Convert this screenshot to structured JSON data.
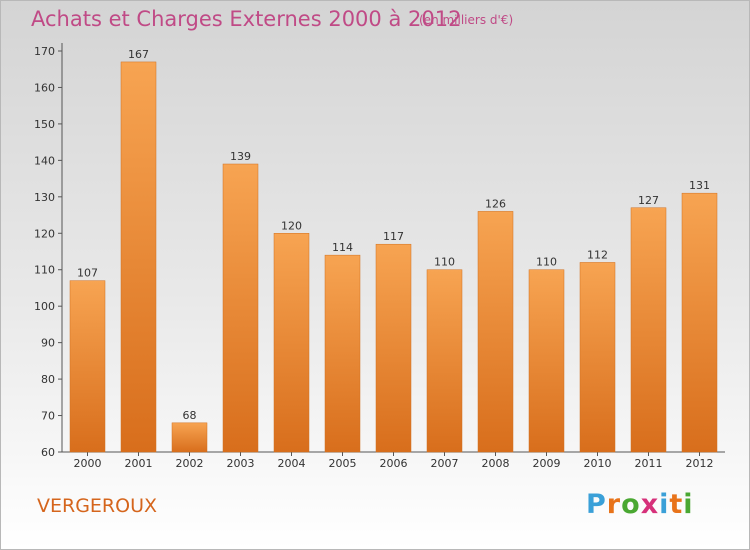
{
  "header": {
    "title": "Achats et Charges Externes 2000 à 2012",
    "unit": "(en milliers d'€)"
  },
  "commune": "VERGEROUX",
  "logo": {
    "text": "Proxiti",
    "colors": [
      "#3aa0d8",
      "#e8731a",
      "#4aa832",
      "#d6307a",
      "#3aa0d8",
      "#e8731a",
      "#4aa832"
    ]
  },
  "colors": {
    "bar_top": "#f7a452",
    "bar_bottom": "#d86e1c",
    "title": "#c04a86",
    "commune": "#d5651c"
  },
  "chart_data": {
    "type": "bar",
    "title": "Achats et Charges Externes 2000 à 2012",
    "subtitle": "(en milliers d'€)",
    "categories": [
      "2000",
      "2001",
      "2002",
      "2003",
      "2004",
      "2005",
      "2006",
      "2007",
      "2008",
      "2009",
      "2010",
      "2011",
      "2012"
    ],
    "values": [
      107,
      167,
      68,
      139,
      120,
      114,
      117,
      110,
      126,
      110,
      112,
      127,
      131
    ],
    "ylim": [
      60,
      170
    ],
    "yticks": [
      60,
      70,
      80,
      90,
      100,
      110,
      120,
      130,
      140,
      150,
      160,
      170
    ],
    "grid": false,
    "data_labels": true
  }
}
